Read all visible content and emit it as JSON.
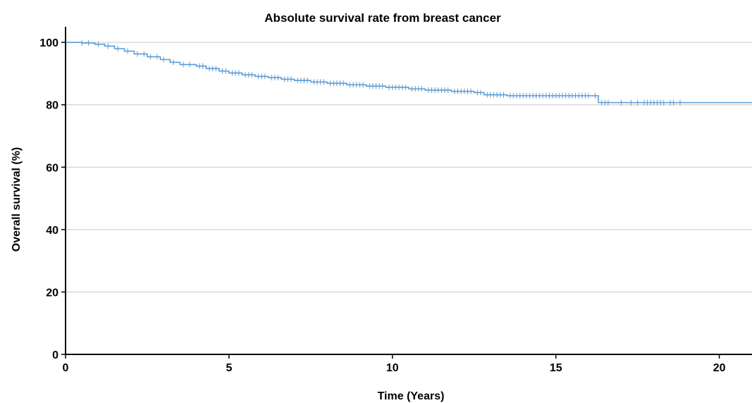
{
  "chart_data": {
    "type": "line",
    "title": "Absolute survival rate from breast cancer",
    "xlabel": "Time (Years)",
    "ylabel": "Overall survival (%)",
    "xlim": [
      0,
      21
    ],
    "ylim": [
      0,
      105
    ],
    "x_ticks": [
      0,
      5,
      10,
      15,
      20
    ],
    "y_ticks": [
      0,
      20,
      40,
      60,
      80,
      100
    ],
    "grid": "horizontal",
    "legend": "none",
    "colors": {
      "line": "#5b9bd5",
      "censor": "#5b9bd5",
      "grid": "#c8c8c8",
      "axis": "#000000"
    },
    "series": [
      {
        "steps": [
          [
            0,
            100
          ],
          [
            0.5,
            99.8
          ],
          [
            0.9,
            99.4
          ],
          [
            1.2,
            98.8
          ],
          [
            1.5,
            98.0
          ],
          [
            1.8,
            97.2
          ],
          [
            2.1,
            96.3
          ],
          [
            2.5,
            95.4
          ],
          [
            2.9,
            94.5
          ],
          [
            3.2,
            93.6
          ],
          [
            3.5,
            92.9
          ],
          [
            4.0,
            92.4
          ],
          [
            4.3,
            91.6
          ],
          [
            4.7,
            90.8
          ],
          [
            5.0,
            90.2
          ],
          [
            5.4,
            89.6
          ],
          [
            5.8,
            89.1
          ],
          [
            6.2,
            88.7
          ],
          [
            6.6,
            88.2
          ],
          [
            7.0,
            87.8
          ],
          [
            7.5,
            87.3
          ],
          [
            8.0,
            86.9
          ],
          [
            8.6,
            86.4
          ],
          [
            9.2,
            86.0
          ],
          [
            9.8,
            85.6
          ],
          [
            10.5,
            85.1
          ],
          [
            11.0,
            84.7
          ],
          [
            11.8,
            84.3
          ],
          [
            12.5,
            83.9
          ],
          [
            12.8,
            83.2
          ],
          [
            13.5,
            82.9
          ],
          [
            16.3,
            80.7
          ],
          [
            21.0,
            80.7
          ]
        ],
        "censored": [
          [
            0.5,
            99.8
          ],
          [
            0.7,
            99.8
          ],
          [
            1.0,
            99.4
          ],
          [
            1.3,
            98.8
          ],
          [
            1.6,
            98.0
          ],
          [
            1.9,
            97.2
          ],
          [
            2.2,
            96.3
          ],
          [
            2.4,
            96.3
          ],
          [
            2.6,
            95.4
          ],
          [
            2.8,
            95.4
          ],
          [
            3.0,
            94.5
          ],
          [
            3.3,
            93.6
          ],
          [
            3.6,
            92.9
          ],
          [
            3.8,
            92.9
          ],
          [
            4.1,
            92.4
          ],
          [
            4.2,
            92.4
          ],
          [
            4.4,
            91.6
          ],
          [
            4.5,
            91.6
          ],
          [
            4.6,
            91.6
          ],
          [
            4.8,
            90.8
          ],
          [
            4.9,
            90.8
          ],
          [
            5.1,
            90.2
          ],
          [
            5.2,
            90.2
          ],
          [
            5.3,
            90.2
          ],
          [
            5.5,
            89.6
          ],
          [
            5.6,
            89.6
          ],
          [
            5.7,
            89.6
          ],
          [
            5.9,
            89.1
          ],
          [
            6.0,
            89.1
          ],
          [
            6.1,
            89.1
          ],
          [
            6.3,
            88.7
          ],
          [
            6.4,
            88.7
          ],
          [
            6.5,
            88.7
          ],
          [
            6.7,
            88.2
          ],
          [
            6.8,
            88.2
          ],
          [
            6.9,
            88.2
          ],
          [
            7.1,
            87.8
          ],
          [
            7.2,
            87.8
          ],
          [
            7.3,
            87.8
          ],
          [
            7.4,
            87.8
          ],
          [
            7.6,
            87.3
          ],
          [
            7.7,
            87.3
          ],
          [
            7.8,
            87.3
          ],
          [
            7.9,
            87.3
          ],
          [
            8.1,
            86.9
          ],
          [
            8.2,
            86.9
          ],
          [
            8.3,
            86.9
          ],
          [
            8.4,
            86.9
          ],
          [
            8.5,
            86.9
          ],
          [
            8.7,
            86.4
          ],
          [
            8.8,
            86.4
          ],
          [
            8.9,
            86.4
          ],
          [
            9.0,
            86.4
          ],
          [
            9.1,
            86.4
          ],
          [
            9.3,
            86.0
          ],
          [
            9.4,
            86.0
          ],
          [
            9.5,
            86.0
          ],
          [
            9.6,
            86.0
          ],
          [
            9.7,
            86.0
          ],
          [
            9.9,
            85.6
          ],
          [
            10.0,
            85.6
          ],
          [
            10.1,
            85.6
          ],
          [
            10.2,
            85.6
          ],
          [
            10.3,
            85.6
          ],
          [
            10.4,
            85.6
          ],
          [
            10.6,
            85.1
          ],
          [
            10.7,
            85.1
          ],
          [
            10.8,
            85.1
          ],
          [
            10.9,
            85.1
          ],
          [
            11.1,
            84.7
          ],
          [
            11.2,
            84.7
          ],
          [
            11.3,
            84.7
          ],
          [
            11.4,
            84.7
          ],
          [
            11.5,
            84.7
          ],
          [
            11.6,
            84.7
          ],
          [
            11.7,
            84.7
          ],
          [
            11.9,
            84.3
          ],
          [
            12.0,
            84.3
          ],
          [
            12.1,
            84.3
          ],
          [
            12.2,
            84.3
          ],
          [
            12.3,
            84.3
          ],
          [
            12.4,
            84.3
          ],
          [
            12.6,
            83.9
          ],
          [
            12.7,
            83.9
          ],
          [
            12.9,
            83.2
          ],
          [
            13.0,
            83.2
          ],
          [
            13.1,
            83.2
          ],
          [
            13.2,
            83.2
          ],
          [
            13.3,
            83.2
          ],
          [
            13.4,
            83.2
          ],
          [
            13.6,
            82.9
          ],
          [
            13.7,
            82.9
          ],
          [
            13.8,
            82.9
          ],
          [
            13.9,
            82.9
          ],
          [
            14.0,
            82.9
          ],
          [
            14.1,
            82.9
          ],
          [
            14.2,
            82.9
          ],
          [
            14.3,
            82.9
          ],
          [
            14.4,
            82.9
          ],
          [
            14.5,
            82.9
          ],
          [
            14.6,
            82.9
          ],
          [
            14.7,
            82.9
          ],
          [
            14.8,
            82.9
          ],
          [
            14.9,
            82.9
          ],
          [
            15.0,
            82.9
          ],
          [
            15.1,
            82.9
          ],
          [
            15.2,
            82.9
          ],
          [
            15.3,
            82.9
          ],
          [
            15.4,
            82.9
          ],
          [
            15.5,
            82.9
          ],
          [
            15.6,
            82.9
          ],
          [
            15.7,
            82.9
          ],
          [
            15.8,
            82.9
          ],
          [
            15.9,
            82.9
          ],
          [
            16.0,
            82.9
          ],
          [
            16.2,
            82.9
          ],
          [
            16.4,
            80.7
          ],
          [
            16.5,
            80.7
          ],
          [
            16.6,
            80.7
          ],
          [
            17.0,
            80.7
          ],
          [
            17.3,
            80.7
          ],
          [
            17.5,
            80.7
          ],
          [
            17.7,
            80.7
          ],
          [
            17.8,
            80.7
          ],
          [
            17.9,
            80.7
          ],
          [
            18.0,
            80.7
          ],
          [
            18.1,
            80.7
          ],
          [
            18.2,
            80.7
          ],
          [
            18.3,
            80.7
          ],
          [
            18.5,
            80.7
          ],
          [
            18.6,
            80.7
          ],
          [
            18.8,
            80.7
          ]
        ]
      }
    ]
  }
}
